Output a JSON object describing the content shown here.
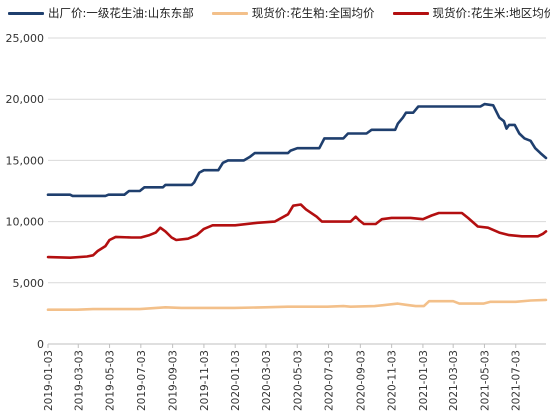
{
  "chart_data": {
    "type": "line",
    "title": "",
    "xlabel": "",
    "ylabel": "",
    "ylim": [
      0,
      25000
    ],
    "yticks": [
      "0",
      "5,000",
      "10,000",
      "15,000",
      "20,000",
      "25,000"
    ],
    "ytick_values": [
      0,
      5000,
      10000,
      15000,
      20000,
      25000
    ],
    "xticks": [
      "2019-01-03",
      "2019-03-03",
      "2019-05-03",
      "2019-07-03",
      "2019-09-03",
      "2019-11-03",
      "2020-01-03",
      "2020-03-03",
      "2020-05-03",
      "2020-07-03",
      "2020-09-03",
      "2020-11-03",
      "2021-01-03",
      "2021-03-03",
      "2021-05-03",
      "2021-07-03"
    ],
    "x_range": [
      "2019-01-03",
      "2021-08-31"
    ],
    "grid": "horizontal",
    "legend": "top",
    "series": [
      {
        "name": "出厂价:一级花生油:山东东部",
        "color": "#1f3f6e",
        "points": [
          [
            "2019-01-03",
            12200
          ],
          [
            "2019-02-15",
            12200
          ],
          [
            "2019-02-20",
            12100
          ],
          [
            "2019-04-01",
            12100
          ],
          [
            "2019-04-25",
            12100
          ],
          [
            "2019-05-01",
            12200
          ],
          [
            "2019-06-01",
            12200
          ],
          [
            "2019-06-10",
            12500
          ],
          [
            "2019-07-01",
            12500
          ],
          [
            "2019-07-10",
            12800
          ],
          [
            "2019-08-15",
            12800
          ],
          [
            "2019-08-20",
            13000
          ],
          [
            "2019-10-10",
            13000
          ],
          [
            "2019-10-15",
            13200
          ],
          [
            "2019-10-20",
            13600
          ],
          [
            "2019-10-25",
            14000
          ],
          [
            "2019-11-03",
            14200
          ],
          [
            "2019-12-01",
            14200
          ],
          [
            "2019-12-10",
            14800
          ],
          [
            "2019-12-20",
            15000
          ],
          [
            "2020-01-20",
            15000
          ],
          [
            "2020-02-01",
            15300
          ],
          [
            "2020-02-10",
            15600
          ],
          [
            "2020-04-15",
            15600
          ],
          [
            "2020-04-20",
            15800
          ],
          [
            "2020-05-03",
            16000
          ],
          [
            "2020-06-15",
            16000
          ],
          [
            "2020-06-25",
            16800
          ],
          [
            "2020-08-01",
            16800
          ],
          [
            "2020-08-10",
            17200
          ],
          [
            "2020-09-15",
            17200
          ],
          [
            "2020-09-25",
            17500
          ],
          [
            "2020-11-10",
            17500
          ],
          [
            "2020-11-15",
            18000
          ],
          [
            "2020-11-25",
            18500
          ],
          [
            "2020-12-01",
            18900
          ],
          [
            "2020-12-15",
            18900
          ],
          [
            "2020-12-25",
            19400
          ],
          [
            "2021-04-25",
            19400
          ],
          [
            "2021-05-03",
            19600
          ],
          [
            "2021-05-20",
            19500
          ],
          [
            "2021-06-01",
            18500
          ],
          [
            "2021-06-10",
            18200
          ],
          [
            "2021-06-15",
            17600
          ],
          [
            "2021-06-20",
            17900
          ],
          [
            "2021-07-01",
            17900
          ],
          [
            "2021-07-10",
            17200
          ],
          [
            "2021-07-20",
            16800
          ],
          [
            "2021-08-01",
            16600
          ],
          [
            "2021-08-10",
            16000
          ],
          [
            "2021-08-20",
            15600
          ],
          [
            "2021-08-31",
            15200
          ]
        ]
      },
      {
        "name": "现货价:花生粕:全国均价",
        "color": "#f3c08a",
        "points": [
          [
            "2019-01-03",
            2800
          ],
          [
            "2019-03-01",
            2800
          ],
          [
            "2019-04-01",
            2850
          ],
          [
            "2019-07-01",
            2850
          ],
          [
            "2019-08-20",
            3000
          ],
          [
            "2019-09-20",
            2950
          ],
          [
            "2019-11-01",
            2950
          ],
          [
            "2020-01-01",
            2950
          ],
          [
            "2020-03-01",
            3000
          ],
          [
            "2020-04-15",
            3050
          ],
          [
            "2020-07-01",
            3050
          ],
          [
            "2020-08-01",
            3100
          ],
          [
            "2020-08-15",
            3050
          ],
          [
            "2020-10-01",
            3100
          ],
          [
            "2020-11-15",
            3300
          ],
          [
            "2020-12-01",
            3200
          ],
          [
            "2020-12-20",
            3100
          ],
          [
            "2021-01-05",
            3100
          ],
          [
            "2021-01-15",
            3500
          ],
          [
            "2021-03-03",
            3500
          ],
          [
            "2021-03-15",
            3300
          ],
          [
            "2021-05-01",
            3300
          ],
          [
            "2021-05-15",
            3450
          ],
          [
            "2021-07-03",
            3450
          ],
          [
            "2021-08-01",
            3550
          ],
          [
            "2021-08-31",
            3600
          ]
        ]
      },
      {
        "name": "现货价:花生米:地区均价",
        "color": "#b30f10",
        "points": [
          [
            "2019-01-03",
            7100
          ],
          [
            "2019-02-15",
            7050
          ],
          [
            "2019-03-20",
            7150
          ],
          [
            "2019-04-01",
            7250
          ],
          [
            "2019-04-10",
            7600
          ],
          [
            "2019-04-25",
            8000
          ],
          [
            "2019-05-03",
            8500
          ],
          [
            "2019-05-15",
            8750
          ],
          [
            "2019-06-15",
            8700
          ],
          [
            "2019-07-03",
            8700
          ],
          [
            "2019-07-20",
            8900
          ],
          [
            "2019-08-01",
            9100
          ],
          [
            "2019-08-10",
            9500
          ],
          [
            "2019-08-20",
            9200
          ],
          [
            "2019-09-01",
            8700
          ],
          [
            "2019-09-10",
            8500
          ],
          [
            "2019-10-03",
            8600
          ],
          [
            "2019-10-20",
            8900
          ],
          [
            "2019-11-03",
            9400
          ],
          [
            "2019-11-20",
            9700
          ],
          [
            "2020-01-03",
            9700
          ],
          [
            "2020-02-15",
            9900
          ],
          [
            "2020-03-20",
            10000
          ],
          [
            "2020-04-15",
            10600
          ],
          [
            "2020-04-25",
            11300
          ],
          [
            "2020-05-10",
            11400
          ],
          [
            "2020-05-20",
            11000
          ],
          [
            "2020-06-10",
            10400
          ],
          [
            "2020-06-20",
            10000
          ],
          [
            "2020-07-20",
            10000
          ],
          [
            "2020-08-15",
            10000
          ],
          [
            "2020-08-25",
            10400
          ],
          [
            "2020-09-01",
            10100
          ],
          [
            "2020-09-10",
            9800
          ],
          [
            "2020-10-03",
            9800
          ],
          [
            "2020-10-15",
            10200
          ],
          [
            "2020-11-03",
            10300
          ],
          [
            "2020-12-10",
            10300
          ],
          [
            "2021-01-03",
            10200
          ],
          [
            "2021-01-20",
            10500
          ],
          [
            "2021-02-03",
            10700
          ],
          [
            "2021-03-20",
            10700
          ],
          [
            "2021-04-01",
            10300
          ],
          [
            "2021-04-20",
            9600
          ],
          [
            "2021-05-10",
            9500
          ],
          [
            "2021-06-01",
            9100
          ],
          [
            "2021-06-20",
            8900
          ],
          [
            "2021-07-15",
            8800
          ],
          [
            "2021-08-15",
            8800
          ],
          [
            "2021-08-25",
            9000
          ],
          [
            "2021-08-31",
            9200
          ]
        ]
      }
    ]
  }
}
